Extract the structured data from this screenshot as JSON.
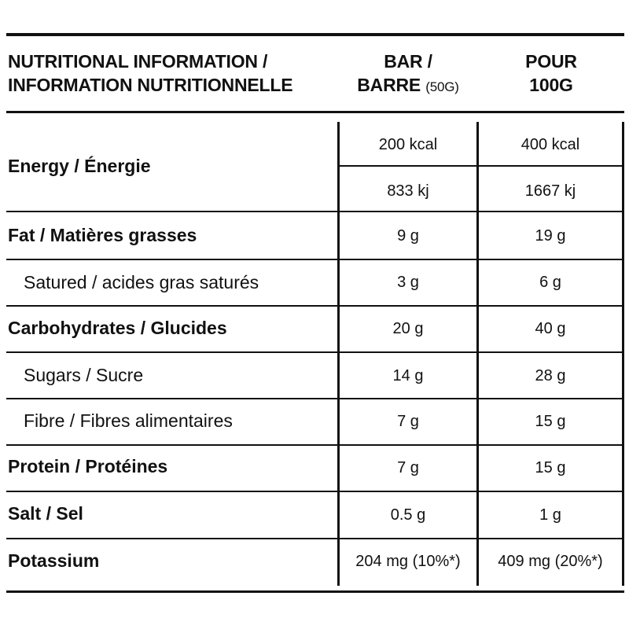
{
  "header": {
    "left_line1": "NUTRITIONAL INFORMATION /",
    "left_line2": "INFORMATION NUTRITIONNELLE",
    "bar_line1": "BAR /",
    "bar_line2": "BARRE",
    "bar_weight": "(50G)",
    "per100_line1": "POUR",
    "per100_line2": "100G"
  },
  "rows": [
    {
      "label": "Energy / Énergie",
      "bar": "200 kcal",
      "per100": "400 kcal",
      "bar2": "833 kj",
      "per100_2": "1667 kj"
    },
    {
      "label": "Fat / Matières grasses",
      "bar": "9 g",
      "per100": "19 g"
    },
    {
      "label": "Satured / acides gras saturés",
      "bar": "3 g",
      "per100": "6 g"
    },
    {
      "label": "Carbohydrates / Glucides",
      "bar": "20 g",
      "per100": "40 g"
    },
    {
      "label": "Sugars / Sucre",
      "bar": "14 g",
      "per100": "28 g"
    },
    {
      "label": "Fibre / Fibres alimentaires",
      "bar": "7 g",
      "per100": "15 g"
    },
    {
      "label": "Protein / Protéines",
      "bar": "7 g",
      "per100": "15 g"
    },
    {
      "label": "Salt / Sel",
      "bar": "0.5 g",
      "per100": "1 g"
    },
    {
      "label": "Potassium",
      "bar": "204 mg (10%*)",
      "per100": "409 mg (20%*)"
    }
  ]
}
